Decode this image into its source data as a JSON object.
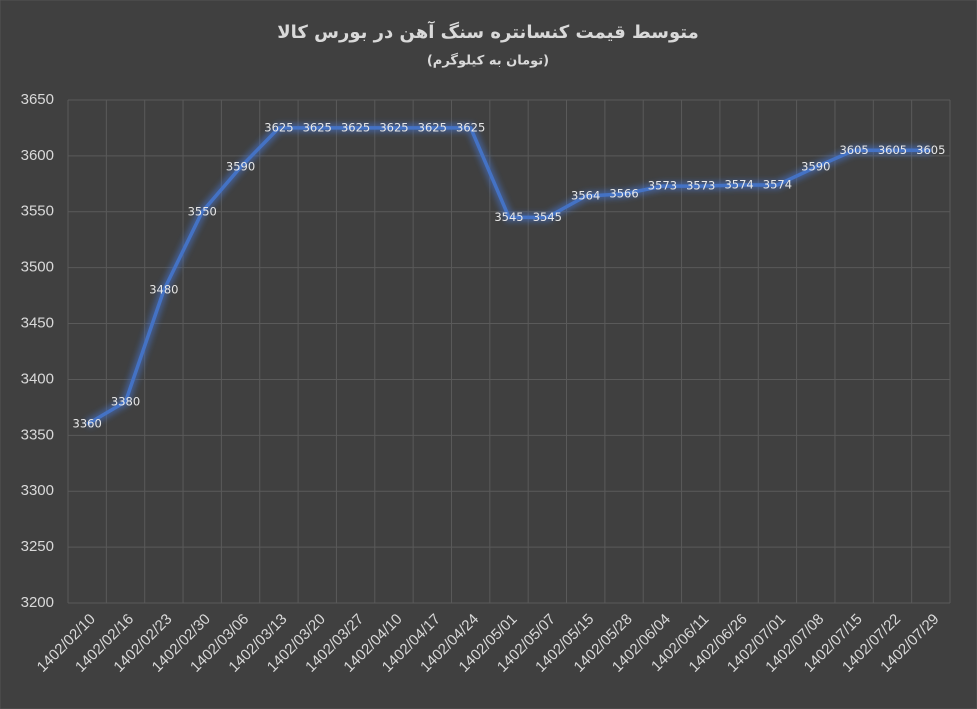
{
  "chart_data": {
    "type": "line",
    "title": "متوسط قیمت کنسانتره سنگ آهن در بورس کالا",
    "subtitle": "(تومان به کیلوگرم)",
    "categories": [
      "1402/02/10",
      "1402/02/16",
      "1402/02/23",
      "1402/02/30",
      "1402/03/06",
      "1402/03/13",
      "1402/03/20",
      "1402/03/27",
      "1402/04/10",
      "1402/04/17",
      "1402/04/24",
      "1402/05/01",
      "1402/05/07",
      "1402/05/15",
      "1402/05/28",
      "1402/06/04",
      "1402/06/11",
      "1402/06/26",
      "1402/07/01",
      "1402/07/08",
      "1402/07/15",
      "1402/07/22",
      "1402/07/29"
    ],
    "values": [
      3360,
      3380,
      3480,
      3550,
      3590,
      3625,
      3625,
      3625,
      3625,
      3625,
      3625,
      3545,
      3545,
      3564,
      3566,
      3573,
      3573,
      3574,
      3574,
      3590,
      3605,
      3605,
      3605
    ],
    "color": "#4472c4",
    "ylim": [
      3200,
      3650
    ],
    "yticks": [
      3200,
      3250,
      3300,
      3350,
      3400,
      3450,
      3500,
      3550,
      3600,
      3650
    ],
    "grid": true
  }
}
